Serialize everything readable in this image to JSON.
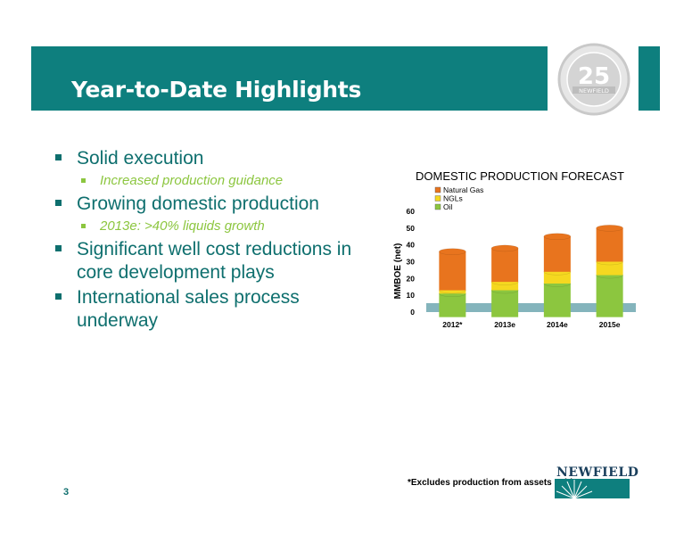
{
  "slide": {
    "title": "Year-to-Date Highlights",
    "page_number": "3",
    "footnote": "*Excludes production from assets sold",
    "logo_text": "NEWFIELD",
    "seal": {
      "number": "25",
      "text": "NEWFIELD"
    }
  },
  "bullets": [
    {
      "text": "Solid execution",
      "sub": "Increased production guidance"
    },
    {
      "text": "Growing domestic production",
      "sub": "2013e: >40% liquids growth"
    },
    {
      "text": "Significant well cost reductions in core development plays",
      "sub": null
    },
    {
      "text": "International sales process underway",
      "sub": null
    }
  ],
  "colors": {
    "banner": "#0e7f7e",
    "text_teal": "#0e6f6e",
    "sub_green": "#8cc63f",
    "oil": "#8cc63f",
    "ngls": "#f5d820",
    "natural_gas": "#e8741e",
    "floor": "#6fa7b0"
  },
  "chart_data": {
    "type": "bar",
    "stacked": true,
    "title": "DOMESTIC PRODUCTION FORECAST",
    "ylabel": "MMBOE (net)",
    "xlabel": "",
    "categories": [
      "2012*",
      "2013e",
      "2014e",
      "2015e"
    ],
    "ylim": [
      0,
      60
    ],
    "yticks": [
      0,
      10,
      20,
      30,
      40,
      50,
      60
    ],
    "legend_position": "top-left",
    "series": [
      {
        "name": "Oil",
        "color": "#8cc63f",
        "values": [
          14,
          16,
          20,
          25
        ]
      },
      {
        "name": "NGLs",
        "color": "#f5d820",
        "values": [
          2,
          5,
          7,
          8
        ]
      },
      {
        "name": "Natural Gas",
        "color": "#e8741e",
        "values": [
          23,
          20,
          21,
          20
        ]
      }
    ],
    "legend_order": [
      "Natural Gas",
      "NGLs",
      "Oil"
    ]
  }
}
